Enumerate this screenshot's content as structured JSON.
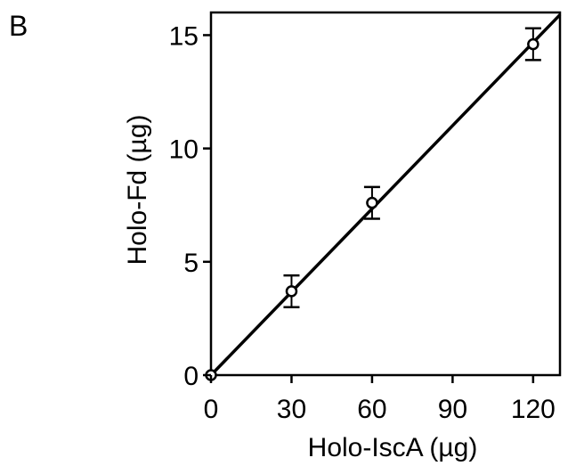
{
  "panel_label": "B",
  "chart_data": {
    "type": "scatter",
    "xlabel": "Holo-IscA (µg)",
    "ylabel": "Holo-Fd (µg)",
    "xlim": [
      0,
      130
    ],
    "ylim": [
      0,
      16
    ],
    "x_ticks": [
      0,
      30,
      60,
      90,
      120
    ],
    "y_ticks": [
      0,
      5,
      10,
      15
    ],
    "grid": false,
    "series": [
      {
        "marker": "open-circle",
        "points": [
          {
            "x": 0,
            "y": 0,
            "err": 0
          },
          {
            "x": 30,
            "y": 3.7,
            "err": 0.7
          },
          {
            "x": 60,
            "y": 7.6,
            "err": 0.7
          },
          {
            "x": 120,
            "y": 14.6,
            "err": 0.7
          }
        ]
      }
    ],
    "fit_line": {
      "x": [
        0,
        130
      ],
      "y": [
        0,
        15.9
      ]
    },
    "colors": {
      "axis": "#000000",
      "marker": "#000000",
      "line": "#000000"
    }
  }
}
